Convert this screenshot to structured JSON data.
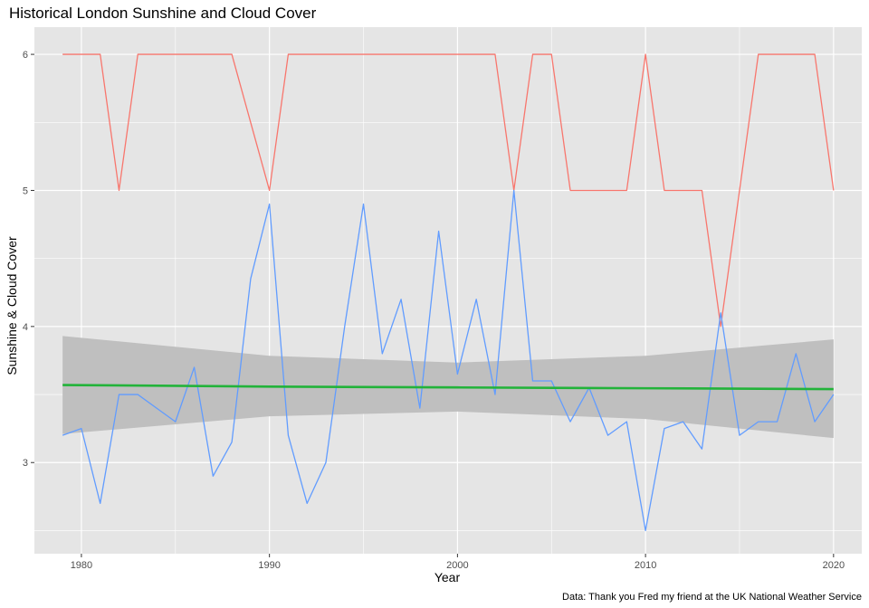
{
  "chart_data": {
    "type": "line",
    "title": "Historical London Sunshine and Cloud Cover",
    "caption": "Data: Thank you Fred my friend at the UK National Weather Service",
    "xlabel": "Year",
    "ylabel": "Sunshine & Cloud Cover",
    "xlim": [
      1977.5,
      2021.5
    ],
    "ylim": [
      2.33,
      6.2
    ],
    "x_ticks": [
      1980,
      1990,
      2000,
      2010,
      2020
    ],
    "y_ticks": [
      3,
      4,
      5,
      6
    ],
    "grid": true,
    "legend": "none",
    "x": [
      1979,
      1980,
      1981,
      1982,
      1983,
      1984,
      1985,
      1986,
      1987,
      1988,
      1989,
      1990,
      1991,
      1992,
      1993,
      1994,
      1995,
      1996,
      1997,
      1998,
      1999,
      2000,
      2001,
      2002,
      2003,
      2004,
      2005,
      2006,
      2007,
      2008,
      2009,
      2010,
      2011,
      2012,
      2013,
      2014,
      2015,
      2016,
      2017,
      2018,
      2019,
      2020
    ],
    "series": [
      {
        "color": "#f8766d",
        "values": [
          6,
          6,
          6,
          5,
          6,
          6,
          6,
          6,
          6,
          6,
          5.5,
          5,
          6,
          6,
          6,
          6,
          6,
          6,
          6,
          6,
          6,
          6,
          6,
          6,
          5,
          6,
          6,
          5,
          5,
          5,
          5,
          6,
          5,
          5,
          5,
          4,
          5,
          6,
          6,
          6,
          6,
          5
        ]
      },
      {
        "color": "#619cff",
        "values": [
          3.2,
          3.25,
          2.7,
          3.5,
          3.5,
          3.4,
          3.3,
          3.7,
          2.9,
          3.15,
          4.35,
          4.9,
          3.2,
          2.7,
          3.0,
          4.0,
          4.9,
          3.8,
          4.2,
          3.4,
          4.7,
          3.65,
          4.2,
          3.5,
          5.0,
          3.6,
          3.6,
          3.3,
          3.55,
          3.2,
          3.3,
          2.5,
          3.25,
          3.3,
          3.1,
          4.1,
          3.2,
          3.3,
          3.3,
          3.8,
          3.3,
          3.5
        ]
      }
    ],
    "trend": {
      "color": "#22b33a",
      "x": [
        1979,
        1990,
        2000,
        2010,
        2020
      ],
      "fit": [
        3.57,
        3.558,
        3.552,
        3.546,
        3.54
      ],
      "lower": [
        3.21,
        3.34,
        3.375,
        3.32,
        3.18
      ],
      "upper": [
        3.93,
        3.785,
        3.735,
        3.785,
        3.905
      ],
      "band_color": "#bfbfbf"
    },
    "panel_color": "#e5e5e5",
    "grid_color": "#ffffff"
  }
}
